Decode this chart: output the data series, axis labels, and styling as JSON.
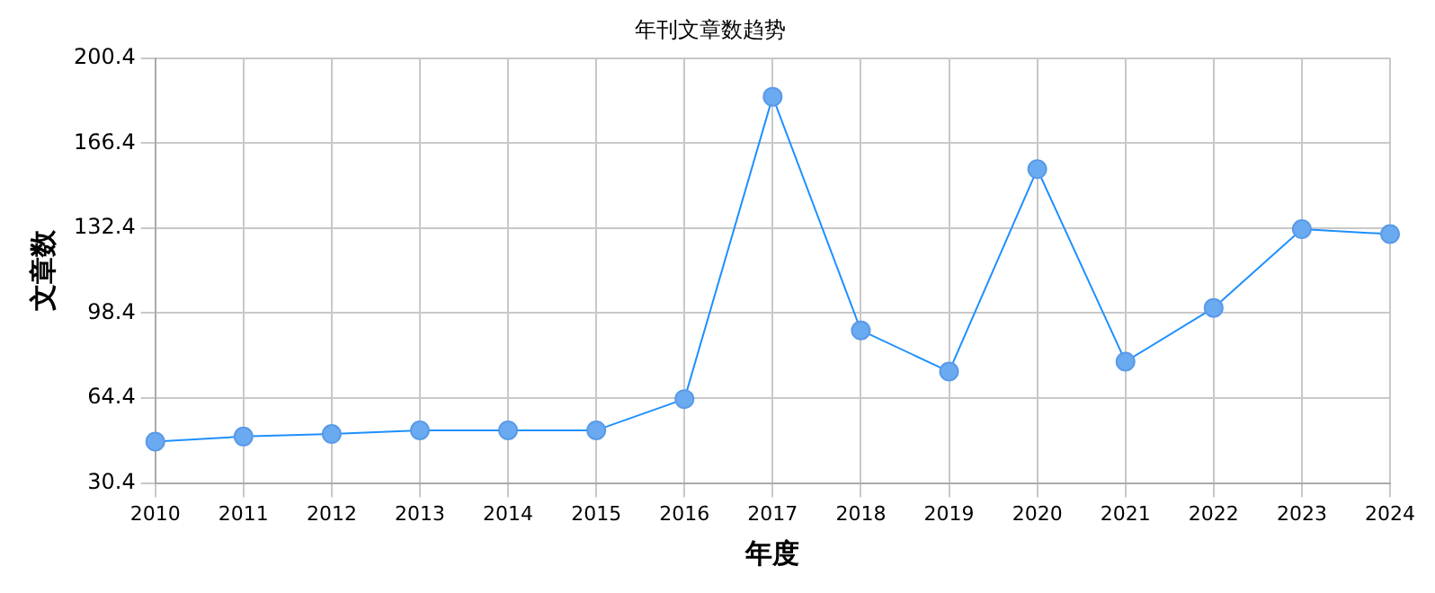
{
  "chart_data": {
    "type": "line",
    "title": "年刊文章数趋势",
    "xlabel": "年度",
    "ylabel": "文章数",
    "categories": [
      "2010",
      "2011",
      "2012",
      "2013",
      "2014",
      "2015",
      "2016",
      "2017",
      "2018",
      "2019",
      "2020",
      "2021",
      "2022",
      "2023",
      "2024"
    ],
    "series": [
      {
        "color": "#1e90ff",
        "values": [
          47,
          49,
          50,
          51.5,
          51.5,
          51.5,
          64,
          185,
          91.5,
          75,
          156,
          79,
          100.5,
          132,
          130
        ]
      }
    ],
    "ylim": [
      30.4,
      200.4
    ],
    "yticks": [
      30.4,
      64.4,
      98.4,
      132.4,
      166.4,
      200.4
    ],
    "grid": true,
    "marker": "circle",
    "line_style": "solid",
    "legend": false
  }
}
